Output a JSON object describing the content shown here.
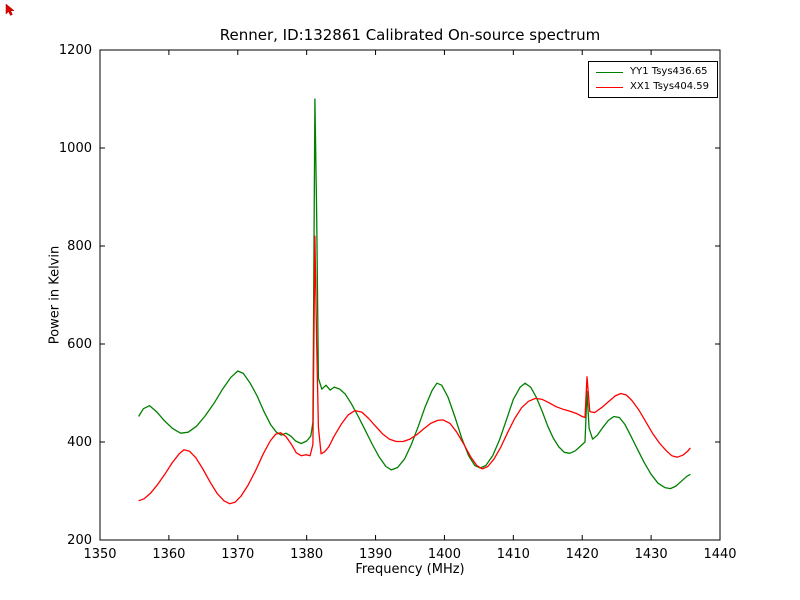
{
  "figure": {
    "title": "Renner, ID:132861 Calibrated On-source spectrum",
    "xlabel": "Frequency (MHz)",
    "ylabel": "Power in Kelvin"
  },
  "chart_data": {
    "type": "line",
    "title": "Renner, ID:132861 Calibrated On-source spectrum",
    "xlabel": "Frequency (MHz)",
    "ylabel": "Power in Kelvin",
    "xlim": [
      1350,
      1440
    ],
    "ylim": [
      200,
      1200
    ],
    "xticks": [
      1350,
      1360,
      1370,
      1380,
      1390,
      1400,
      1410,
      1420,
      1430,
      1440
    ],
    "yticks": [
      200,
      400,
      600,
      800,
      1000,
      1200
    ],
    "grid": false,
    "legend_position": "upper right",
    "series": [
      {
        "name": "YY1 Tsys436.65",
        "color": "#008000",
        "points": [
          [
            1355.6,
            452
          ],
          [
            1356.3,
            468
          ],
          [
            1357.2,
            474
          ],
          [
            1358.2,
            462
          ],
          [
            1359.3,
            444
          ],
          [
            1360.5,
            428
          ],
          [
            1361.7,
            418
          ],
          [
            1362.8,
            420
          ],
          [
            1364,
            432
          ],
          [
            1365.2,
            452
          ],
          [
            1366.5,
            478
          ],
          [
            1367.8,
            508
          ],
          [
            1369,
            532
          ],
          [
            1370,
            545
          ],
          [
            1370.8,
            540
          ],
          [
            1371.8,
            520
          ],
          [
            1372.8,
            494
          ],
          [
            1373.8,
            462
          ],
          [
            1374.8,
            435
          ],
          [
            1375.6,
            420
          ],
          [
            1376.3,
            414
          ],
          [
            1377,
            418
          ],
          [
            1377.7,
            412
          ],
          [
            1378.4,
            402
          ],
          [
            1379.2,
            397
          ],
          [
            1380,
            402
          ],
          [
            1380.6,
            412
          ],
          [
            1380.9,
            440
          ],
          [
            1381.2,
            1100
          ],
          [
            1381.45,
            860
          ],
          [
            1381.7,
            530
          ],
          [
            1382.2,
            508
          ],
          [
            1382.8,
            516
          ],
          [
            1383.4,
            506
          ],
          [
            1384,
            512
          ],
          [
            1384.8,
            508
          ],
          [
            1385.6,
            498
          ],
          [
            1386.5,
            478
          ],
          [
            1387.5,
            452
          ],
          [
            1388.5,
            424
          ],
          [
            1389.5,
            396
          ],
          [
            1390.5,
            370
          ],
          [
            1391.5,
            350
          ],
          [
            1392.3,
            343
          ],
          [
            1393.2,
            348
          ],
          [
            1394.2,
            365
          ],
          [
            1395.2,
            395
          ],
          [
            1396.2,
            432
          ],
          [
            1397.2,
            472
          ],
          [
            1398.2,
            505
          ],
          [
            1398.9,
            520
          ],
          [
            1399.6,
            516
          ],
          [
            1400.5,
            492
          ],
          [
            1401.5,
            452
          ],
          [
            1402.5,
            408
          ],
          [
            1403.5,
            372
          ],
          [
            1404.4,
            352
          ],
          [
            1405.2,
            347
          ],
          [
            1406,
            352
          ],
          [
            1407,
            372
          ],
          [
            1408,
            405
          ],
          [
            1409,
            445
          ],
          [
            1410,
            487
          ],
          [
            1411,
            512
          ],
          [
            1411.7,
            520
          ],
          [
            1412.5,
            512
          ],
          [
            1413.3,
            492
          ],
          [
            1414.2,
            462
          ],
          [
            1415,
            432
          ],
          [
            1415.8,
            408
          ],
          [
            1416.6,
            390
          ],
          [
            1417.4,
            379
          ],
          [
            1418.2,
            377
          ],
          [
            1419,
            382
          ],
          [
            1419.8,
            392
          ],
          [
            1420.4,
            400
          ],
          [
            1420.7,
            503
          ],
          [
            1421,
            428
          ],
          [
            1421.5,
            406
          ],
          [
            1422.2,
            414
          ],
          [
            1423,
            430
          ],
          [
            1423.8,
            444
          ],
          [
            1424.6,
            452
          ],
          [
            1425.4,
            450
          ],
          [
            1426.2,
            436
          ],
          [
            1427,
            414
          ],
          [
            1428,
            386
          ],
          [
            1429,
            358
          ],
          [
            1430,
            334
          ],
          [
            1431,
            316
          ],
          [
            1432,
            307
          ],
          [
            1432.8,
            305
          ],
          [
            1433.6,
            310
          ],
          [
            1434.4,
            320
          ],
          [
            1435.2,
            330
          ],
          [
            1435.7,
            334
          ]
        ]
      },
      {
        "name": "XX1 Tsys404.59",
        "color": "#ff0000",
        "points": [
          [
            1355.6,
            280
          ],
          [
            1356.4,
            284
          ],
          [
            1357.3,
            295
          ],
          [
            1358.3,
            312
          ],
          [
            1359.4,
            334
          ],
          [
            1360.5,
            358
          ],
          [
            1361.5,
            376
          ],
          [
            1362.2,
            384
          ],
          [
            1363,
            381
          ],
          [
            1363.9,
            368
          ],
          [
            1364.9,
            346
          ],
          [
            1366,
            318
          ],
          [
            1367,
            295
          ],
          [
            1368,
            280
          ],
          [
            1368.8,
            274
          ],
          [
            1369.6,
            277
          ],
          [
            1370.5,
            290
          ],
          [
            1371.5,
            312
          ],
          [
            1372.6,
            342
          ],
          [
            1373.7,
            376
          ],
          [
            1374.7,
            402
          ],
          [
            1375.5,
            416
          ],
          [
            1376.2,
            419
          ],
          [
            1377,
            411
          ],
          [
            1377.8,
            395
          ],
          [
            1378.5,
            378
          ],
          [
            1379.2,
            372
          ],
          [
            1379.9,
            374
          ],
          [
            1380.5,
            372
          ],
          [
            1380.9,
            395
          ],
          [
            1381.2,
            820
          ],
          [
            1381.45,
            600
          ],
          [
            1381.7,
            430
          ],
          [
            1382.1,
            376
          ],
          [
            1382.6,
            380
          ],
          [
            1383.2,
            390
          ],
          [
            1384,
            412
          ],
          [
            1385,
            436
          ],
          [
            1386,
            455
          ],
          [
            1387,
            464
          ],
          [
            1388,
            461
          ],
          [
            1389,
            448
          ],
          [
            1390,
            432
          ],
          [
            1391,
            417
          ],
          [
            1392,
            406
          ],
          [
            1393,
            401
          ],
          [
            1394,
            401
          ],
          [
            1395,
            406
          ],
          [
            1396,
            415
          ],
          [
            1397,
            427
          ],
          [
            1398,
            438
          ],
          [
            1399,
            444
          ],
          [
            1399.8,
            445
          ],
          [
            1400.8,
            438
          ],
          [
            1401.8,
            420
          ],
          [
            1402.8,
            396
          ],
          [
            1403.8,
            370
          ],
          [
            1404.7,
            352
          ],
          [
            1405.5,
            345
          ],
          [
            1406.3,
            350
          ],
          [
            1407.2,
            365
          ],
          [
            1408.2,
            390
          ],
          [
            1409.2,
            420
          ],
          [
            1410.2,
            448
          ],
          [
            1411.2,
            470
          ],
          [
            1412.2,
            483
          ],
          [
            1413.2,
            489
          ],
          [
            1414.2,
            487
          ],
          [
            1415.2,
            480
          ],
          [
            1416.2,
            472
          ],
          [
            1417.2,
            467
          ],
          [
            1418.2,
            463
          ],
          [
            1419.2,
            458
          ],
          [
            1420,
            452
          ],
          [
            1420.4,
            450
          ],
          [
            1420.7,
            533
          ],
          [
            1421.1,
            462
          ],
          [
            1421.8,
            460
          ],
          [
            1422.8,
            470
          ],
          [
            1423.8,
            482
          ],
          [
            1424.8,
            494
          ],
          [
            1425.6,
            499
          ],
          [
            1426.4,
            496
          ],
          [
            1427.2,
            485
          ],
          [
            1428.2,
            466
          ],
          [
            1429.2,
            442
          ],
          [
            1430.2,
            418
          ],
          [
            1431.2,
            398
          ],
          [
            1432.2,
            382
          ],
          [
            1433,
            372
          ],
          [
            1433.8,
            369
          ],
          [
            1434.6,
            373
          ],
          [
            1435.3,
            381
          ],
          [
            1435.7,
            388
          ]
        ]
      }
    ]
  }
}
